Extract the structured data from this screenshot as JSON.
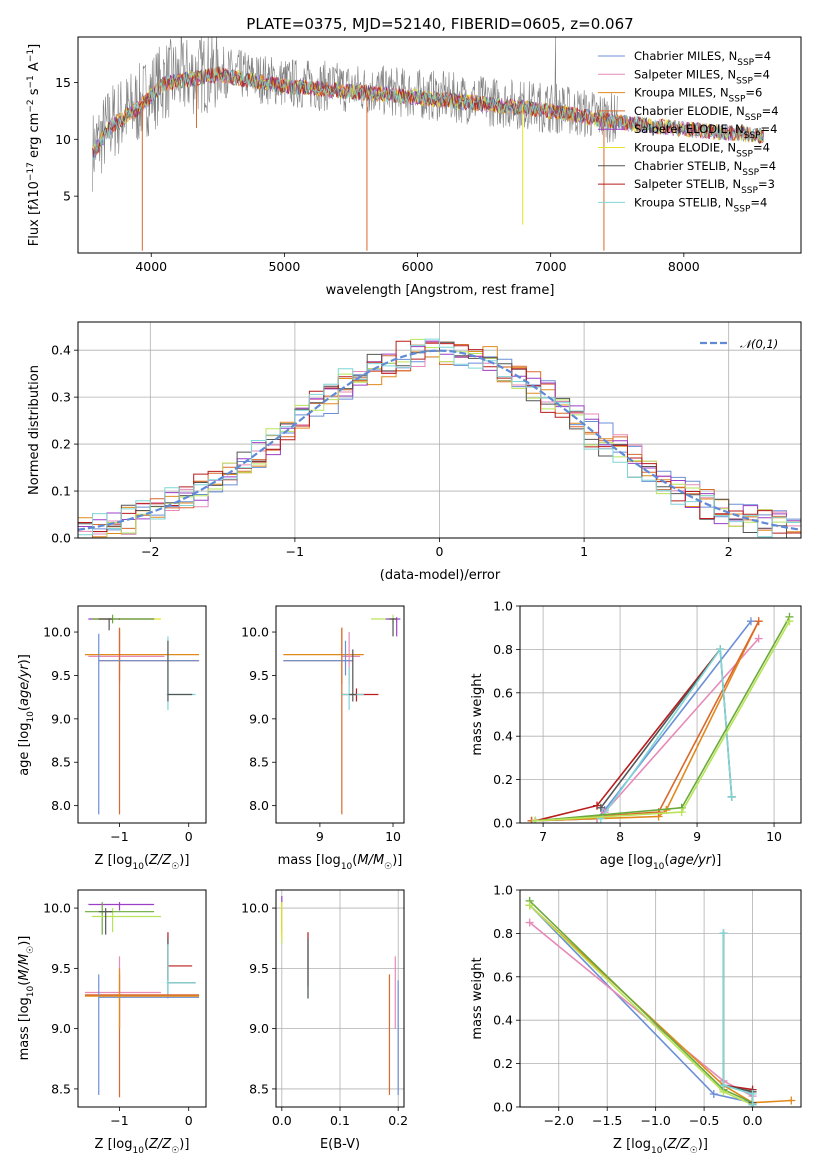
{
  "figure_title": "PLATE=0375, MJD=52140, FIBERID=0605, z=0.067",
  "colors": {
    "Chabrier MILES": "#6b8fd6",
    "Salpeter MILES": "#e68ab8",
    "Kroupa MILES": "#e08a1e",
    "Chabrier ELODIE": "#d9692e",
    "Salpeter ELODIE": "#9b3fc7",
    "Kroupa ELODIE": "#e3e32a",
    "Chabrier STELIB": "#555555",
    "Salpeter STELIB": "#b81c1c",
    "Kroupa STELIB": "#7fd6d6",
    "green_extra": "#6aaa3a",
    "light_green": "#b9e35a",
    "data_gray": "#808080",
    "normal_curve": "#5f8bd6"
  },
  "chart_data": [
    {
      "id": "spectrum",
      "type": "line",
      "title": "PLATE=0375, MJD=52140, FIBERID=0605, z=0.067",
      "xlabel": "wavelength [Angstrom, rest frame]",
      "ylabel_parts": [
        "Flux [f",
        "λ",
        "10",
        "−17",
        " erg cm",
        "−2",
        " s",
        "−1",
        " A",
        "−1",
        "]"
      ],
      "xlim": [
        3450,
        8880
      ],
      "ylim": [
        0,
        19
      ],
      "xticks": [
        4000,
        5000,
        6000,
        7000,
        8000
      ],
      "yticks": [
        5,
        10,
        15
      ],
      "legend_loc": "upper right",
      "legend": [
        {
          "label": "Chabrier MILES, N",
          "sub": "SSP",
          "val": "=4",
          "color": "Chabrier MILES"
        },
        {
          "label": "Salpeter MILES, N",
          "sub": "SSP",
          "val": "=4",
          "color": "Salpeter MILES"
        },
        {
          "label": "Kroupa MILES, N",
          "sub": "SSP",
          "val": "=6",
          "color": "Kroupa MILES"
        },
        {
          "label": "Chabrier ELODIE, N",
          "sub": "SSP",
          "val": "=4",
          "color": "Chabrier ELODIE"
        },
        {
          "label": "Salpeter ELODIE, N",
          "sub": "SSP",
          "val": "=4",
          "color": "Salpeter ELODIE"
        },
        {
          "label": "Kroupa ELODIE, N",
          "sub": "SSP",
          "val": "=4",
          "color": "Kroupa ELODIE"
        },
        {
          "label": "Chabrier STELIB, N",
          "sub": "SSP",
          "val": "=4",
          "color": "Chabrier STELIB"
        },
        {
          "label": "Salpeter STELIB, N",
          "sub": "SSP",
          "val": "=3",
          "color": "Salpeter STELIB"
        },
        {
          "label": "Kroupa STELIB, N",
          "sub": "SSP",
          "val": "=4",
          "color": "Kroupa STELIB"
        }
      ],
      "continuum": [
        [
          3560,
          9.0
        ],
        [
          3700,
          11.5
        ],
        [
          3900,
          13.0
        ],
        [
          4100,
          15.2
        ],
        [
          4500,
          16.0
        ],
        [
          5000,
          15.0
        ],
        [
          5500,
          14.5
        ],
        [
          6000,
          14.0
        ],
        [
          6500,
          13.4
        ],
        [
          7000,
          12.8
        ],
        [
          7500,
          11.8
        ],
        [
          8000,
          11.2
        ],
        [
          8600,
          10.6
        ]
      ],
      "model_range": [
        3560,
        8600
      ],
      "data_range": [
        3560,
        7500
      ],
      "spikes": [
        [
          3933,
          0.2
        ],
        [
          4340,
          11.0
        ],
        [
          5620,
          0.2
        ],
        [
          6790,
          2.5
        ],
        [
          7400,
          0.2
        ]
      ]
    },
    {
      "id": "residual_hist",
      "type": "line",
      "xlabel": "(data-model)/error",
      "ylabel": "Normed distribution",
      "xlim": [
        -2.5,
        2.5
      ],
      "ylim": [
        0,
        0.46
      ],
      "xticks": [
        -2,
        -1,
        0,
        1,
        2
      ],
      "yticks": [
        0.0,
        0.1,
        0.2,
        0.3,
        0.4
      ],
      "grid": true,
      "legend_loc": "upper right",
      "legend": [
        {
          "label": "𝒩(0,1)",
          "color": "normal_curve",
          "style": "dashed"
        }
      ],
      "bin_width": 0.1,
      "series_colors": [
        "Chabrier MILES",
        "Salpeter MILES",
        "Kroupa MILES",
        "Chabrier ELODIE",
        "Salpeter ELODIE",
        "light_green",
        "Chabrier STELIB",
        "Salpeter STELIB",
        "Kroupa STELIB"
      ]
    },
    {
      "id": "age_vs_Z",
      "type": "scatter",
      "xlabel": "Z [log10(Z/Z☉)]",
      "xlabel_parts": [
        "Z [log",
        "10",
        "(",
        "Z/Z",
        "☉",
        ")]"
      ],
      "ylabel_parts": [
        "age  [log",
        "10",
        "(",
        "age/yr",
        ")]"
      ],
      "xlim": [
        -1.6,
        0.25
      ],
      "ylim": [
        7.8,
        10.3
      ],
      "xticks": [
        -1,
        0
      ],
      "yticks": [
        8.0,
        8.5,
        9.0,
        9.5,
        10.0
      ],
      "errorbars": [
        {
          "x": -1.0,
          "y": 10.15,
          "xlo": -1.4,
          "xhi": -0.4,
          "ylo": 10.14,
          "yhi": 10.16,
          "color": "Kroupa ELODIE"
        },
        {
          "x": -1.0,
          "y": 10.15,
          "xlo": -1.45,
          "xhi": -0.5,
          "ylo": 10.14,
          "yhi": 10.16,
          "color": "Salpeter ELODIE"
        },
        {
          "x": -1.1,
          "y": 10.15,
          "xlo": -1.4,
          "xhi": -0.5,
          "ylo": 10.1,
          "yhi": 10.2,
          "color": "green_extra"
        },
        {
          "x": -1.15,
          "y": 10.15,
          "xlo": -1.3,
          "xhi": -1.1,
          "ylo": 10.02,
          "yhi": 10.16,
          "color": "Chabrier STELIB"
        },
        {
          "x": -1.0,
          "y": 9.74,
          "xlo": -1.5,
          "xhi": 0.15,
          "ylo": 9.45,
          "yhi": 10.05,
          "color": "Kroupa MILES"
        },
        {
          "x": -1.0,
          "y": 9.72,
          "xlo": -1.45,
          "xhi": -0.35,
          "ylo": 9.4,
          "yhi": 10.0,
          "color": "Salpeter MILES"
        },
        {
          "x": -1.0,
          "y": 9.67,
          "xlo": -1.3,
          "xhi": 0.15,
          "ylo": 7.9,
          "yhi": 10.05,
          "color": "Chabrier ELODIE"
        },
        {
          "x": -1.3,
          "y": 9.67,
          "xlo": -1.3,
          "xhi": 0.15,
          "ylo": 7.9,
          "yhi": 9.98,
          "color": "Chabrier MILES"
        },
        {
          "x": -0.3,
          "y": 9.28,
          "xlo": -0.32,
          "xhi": 0.1,
          "ylo": 9.1,
          "yhi": 9.95,
          "color": "Kroupa STELIB"
        },
        {
          "x": -0.3,
          "y": 9.28,
          "xlo": -0.3,
          "xhi": 0.05,
          "ylo": 9.2,
          "yhi": 9.9,
          "color": "Chabrier STELIB"
        }
      ]
    },
    {
      "id": "age_vs_mass",
      "type": "scatter",
      "xlabel_parts": [
        "mass [log",
        "10",
        "(",
        "M/M",
        "☉",
        ")]"
      ],
      "xlim": [
        8.4,
        10.15
      ],
      "ylim": [
        7.8,
        10.3
      ],
      "xticks": [
        9,
        10
      ],
      "yticks": [
        8.0,
        8.5,
        9.0,
        9.5,
        10.0
      ],
      "errorbars": [
        {
          "x": 10.0,
          "y": 10.15,
          "xlo": 9.7,
          "xhi": 10.05,
          "ylo": 10.1,
          "yhi": 10.2,
          "color": "light_green"
        },
        {
          "x": 10.05,
          "y": 10.15,
          "xlo": 9.9,
          "xhi": 10.1,
          "ylo": 9.95,
          "yhi": 10.17,
          "color": "Salpeter ELODIE"
        },
        {
          "x": 10.0,
          "y": 10.15,
          "xlo": 9.95,
          "xhi": 10.05,
          "ylo": 9.95,
          "yhi": 10.16,
          "color": "Chabrier STELIB"
        },
        {
          "x": 9.3,
          "y": 9.74,
          "xlo": 8.5,
          "xhi": 9.6,
          "ylo": 9.4,
          "yhi": 10.05,
          "color": "Kroupa MILES"
        },
        {
          "x": 9.4,
          "y": 9.72,
          "xlo": 9.3,
          "xhi": 9.55,
          "ylo": 9.4,
          "yhi": 10.0,
          "color": "Salpeter MILES"
        },
        {
          "x": 9.3,
          "y": 9.67,
          "xlo": 8.5,
          "xhi": 9.45,
          "ylo": 7.9,
          "yhi": 10.05,
          "color": "Chabrier ELODIE"
        },
        {
          "x": 9.35,
          "y": 9.67,
          "xlo": 8.5,
          "xhi": 9.45,
          "ylo": 9.5,
          "yhi": 9.9,
          "color": "Chabrier MILES"
        },
        {
          "x": 9.5,
          "y": 9.28,
          "xlo": 9.3,
          "xhi": 9.8,
          "ylo": 9.2,
          "yhi": 9.35,
          "color": "Salpeter STELIB"
        },
        {
          "x": 9.4,
          "y": 9.28,
          "xlo": 9.3,
          "xhi": 9.6,
          "ylo": 9.1,
          "yhi": 9.6,
          "color": "Kroupa STELIB"
        },
        {
          "x": 9.45,
          "y": 9.28,
          "xlo": 9.4,
          "xhi": 9.5,
          "ylo": 9.2,
          "yhi": 9.8,
          "color": "Chabrier STELIB"
        }
      ]
    },
    {
      "id": "weight_vs_age",
      "type": "line",
      "xlabel_parts": [
        "age  [log",
        "10",
        "(",
        "age/yr",
        ")]"
      ],
      "ylabel": "mass weight",
      "xlim": [
        6.7,
        10.35
      ],
      "ylim": [
        0,
        1.0
      ],
      "xticks": [
        7,
        8,
        9,
        10
      ],
      "yticks": [
        0.0,
        0.2,
        0.4,
        0.6,
        0.8,
        1.0
      ],
      "grid": true,
      "series": [
        {
          "color": "Chabrier MILES",
          "x": [
            6.85,
            7.7,
            7.8,
            9.7
          ],
          "y": [
            0.01,
            0.02,
            0.06,
            0.93
          ]
        },
        {
          "color": "Salpeter MILES",
          "x": [
            6.85,
            7.7,
            7.8,
            9.8
          ],
          "y": [
            0.01,
            0.02,
            0.05,
            0.85
          ]
        },
        {
          "color": "Kroupa MILES",
          "x": [
            6.85,
            8.5,
            8.6,
            9.8
          ],
          "y": [
            0.01,
            0.03,
            0.06,
            0.93
          ]
        },
        {
          "color": "Chabrier ELODIE",
          "x": [
            6.85,
            8.5,
            9.8
          ],
          "y": [
            0.01,
            0.05,
            0.93
          ]
        },
        {
          "color": "Salpeter STELIB",
          "x": [
            6.9,
            7.7,
            9.3
          ],
          "y": [
            0.01,
            0.08,
            0.8
          ]
        },
        {
          "color": "Chabrier STELIB",
          "x": [
            7.75,
            9.3,
            9.45
          ],
          "y": [
            0.07,
            0.8,
            0.12
          ]
        },
        {
          "color": "Kroupa STELIB",
          "x": [
            7.75,
            9.3,
            9.45
          ],
          "y": [
            0.02,
            0.8,
            0.12
          ]
        },
        {
          "color": "green_extra",
          "x": [
            6.9,
            8.8,
            10.2
          ],
          "y": [
            0.01,
            0.07,
            0.95
          ]
        },
        {
          "color": "light_green",
          "x": [
            6.9,
            8.8,
            10.2
          ],
          "y": [
            0.01,
            0.05,
            0.93
          ]
        }
      ]
    },
    {
      "id": "mass_vs_Z",
      "type": "scatter",
      "xlabel_parts": [
        "Z [log",
        "10",
        "(",
        "Z/Z",
        "☉",
        ")]"
      ],
      "ylabel_parts": [
        "mass [log",
        "10",
        "(",
        "M/M",
        "☉",
        ")]"
      ],
      "xlim": [
        -1.6,
        0.25
      ],
      "ylim": [
        8.35,
        10.15
      ],
      "xticks": [
        -1,
        0
      ],
      "yticks": [
        8.5,
        9.0,
        9.5,
        10.0
      ],
      "errorbars": [
        {
          "x": -1.0,
          "y": 10.03,
          "xlo": -1.45,
          "xhi": -0.5,
          "ylo": 9.98,
          "yhi": 10.05,
          "color": "Salpeter ELODIE"
        },
        {
          "x": -1.25,
          "y": 9.97,
          "xlo": -1.5,
          "xhi": -0.5,
          "ylo": 9.78,
          "yhi": 10.05,
          "color": "green_extra"
        },
        {
          "x": -1.1,
          "y": 9.93,
          "xlo": -1.4,
          "xhi": -0.4,
          "ylo": 9.8,
          "yhi": 10.0,
          "color": "light_green"
        },
        {
          "x": -1.2,
          "y": 9.97,
          "xlo": -1.3,
          "xhi": -1.1,
          "ylo": 9.78,
          "yhi": 10.0,
          "color": "Chabrier STELIB"
        },
        {
          "x": -0.3,
          "y": 9.52,
          "xlo": -0.3,
          "xhi": 0.05,
          "ylo": 9.4,
          "yhi": 9.8,
          "color": "Salpeter STELIB"
        },
        {
          "x": -0.3,
          "y": 9.38,
          "xlo": -0.3,
          "xhi": 0.1,
          "ylo": 9.25,
          "yhi": 9.75,
          "color": "Chabrier STELIB"
        },
        {
          "x": -0.3,
          "y": 9.38,
          "xlo": -0.32,
          "xhi": 0.1,
          "ylo": 9.25,
          "yhi": 9.7,
          "color": "Kroupa STELIB"
        },
        {
          "x": -1.0,
          "y": 9.3,
          "xlo": -1.5,
          "xhi": -0.4,
          "ylo": 9.0,
          "yhi": 9.6,
          "color": "Salpeter MILES"
        },
        {
          "x": -1.0,
          "y": 9.28,
          "xlo": -1.5,
          "xhi": 0.15,
          "ylo": 8.43,
          "yhi": 9.45,
          "color": "Chabrier ELODIE"
        },
        {
          "x": -1.3,
          "y": 9.26,
          "xlo": -1.3,
          "xhi": 0.15,
          "ylo": 8.45,
          "yhi": 9.45,
          "color": "Chabrier MILES"
        },
        {
          "x": -1.0,
          "y": 9.27,
          "xlo": -1.5,
          "xhi": 0.15,
          "ylo": 9.0,
          "yhi": 9.5,
          "color": "Kroupa MILES"
        }
      ]
    },
    {
      "id": "mass_vs_ebv",
      "type": "scatter",
      "xlabel": "E(B-V)",
      "xlim": [
        -0.01,
        0.21
      ],
      "ylim": [
        8.35,
        10.15
      ],
      "xticks": [
        0.0,
        0.1,
        0.2
      ],
      "yticks": [
        8.5,
        9.0,
        9.5,
        10.0
      ],
      "grid": true,
      "errorbars": [
        {
          "x": 0.0,
          "y": 9.95,
          "ylo": 9.8,
          "yhi": 10.1,
          "color": "Salpeter ELODIE"
        },
        {
          "x": 0.0,
          "y": 9.93,
          "ylo": 9.7,
          "yhi": 10.05,
          "color": "light_green"
        },
        {
          "x": 0.0,
          "y": 9.95,
          "ylo": 9.75,
          "yhi": 10.05,
          "color": "Kroupa ELODIE"
        },
        {
          "x": 0.045,
          "y": 9.5,
          "ylo": 9.35,
          "yhi": 9.8,
          "color": "Salpeter STELIB"
        },
        {
          "x": 0.045,
          "y": 9.4,
          "ylo": 9.25,
          "yhi": 9.7,
          "color": "Kroupa STELIB"
        },
        {
          "x": 0.045,
          "y": 9.4,
          "ylo": 9.25,
          "yhi": 9.75,
          "color": "Chabrier STELIB"
        },
        {
          "x": 0.185,
          "y": 8.9,
          "ylo": 8.45,
          "yhi": 9.45,
          "color": "Chabrier ELODIE"
        },
        {
          "x": 0.195,
          "y": 9.3,
          "ylo": 9.0,
          "yhi": 9.6,
          "color": "Salpeter MILES"
        },
        {
          "x": 0.2,
          "y": 8.9,
          "ylo": 8.45,
          "yhi": 9.4,
          "color": "Chabrier MILES"
        }
      ]
    },
    {
      "id": "weight_vs_Z",
      "type": "line",
      "xlabel_parts": [
        "Z [log",
        "10",
        "(",
        "Z/Z",
        "☉",
        ")]"
      ],
      "ylabel": "mass weight",
      "xlim": [
        -2.4,
        0.5
      ],
      "ylim": [
        0,
        1.0
      ],
      "xticks": [
        -2.0,
        -1.5,
        -1.0,
        -0.5,
        0.0
      ],
      "yticks": [
        0.0,
        0.2,
        0.4,
        0.6,
        0.8,
        1.0
      ],
      "grid": true,
      "series": [
        {
          "color": "Chabrier MILES",
          "x": [
            -2.3,
            -0.4,
            0.0
          ],
          "y": [
            0.93,
            0.06,
            0.02
          ]
        },
        {
          "color": "Salpeter MILES",
          "x": [
            -2.3,
            -0.3,
            0.0
          ],
          "y": [
            0.85,
            0.12,
            0.05
          ]
        },
        {
          "color": "Kroupa MILES",
          "x": [
            -2.3,
            -0.3,
            0.0,
            0.4
          ],
          "y": [
            0.93,
            0.1,
            0.02,
            0.03
          ]
        },
        {
          "color": "green_extra",
          "x": [
            -2.3,
            -0.3,
            0.0
          ],
          "y": [
            0.95,
            0.08,
            0.02
          ]
        },
        {
          "color": "light_green",
          "x": [
            -2.3,
            -0.3,
            0.0
          ],
          "y": [
            0.93,
            0.07,
            0.01
          ]
        },
        {
          "color": "Salpeter STELIB",
          "x": [
            -0.3,
            0.0,
            0.0
          ],
          "y": [
            0.1,
            0.08,
            0.01
          ]
        },
        {
          "color": "Chabrier STELIB",
          "x": [
            -0.3,
            -0.3,
            0.0,
            0.0
          ],
          "y": [
            0.8,
            0.1,
            0.07,
            0.02
          ]
        },
        {
          "color": "Kroupa STELIB",
          "x": [
            -0.3,
            -0.3,
            0.0,
            0.0
          ],
          "y": [
            0.8,
            0.1,
            0.06,
            0.01
          ]
        }
      ]
    }
  ]
}
